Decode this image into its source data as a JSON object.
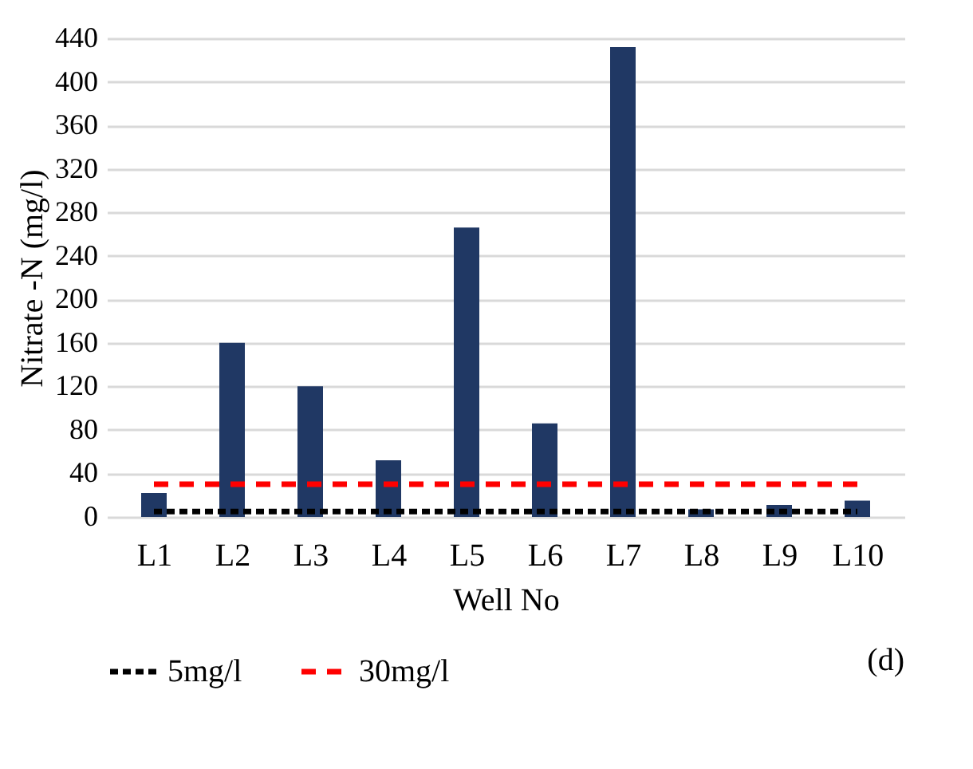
{
  "chart_data": {
    "type": "bar",
    "xlabel": "Well No",
    "ylabel": "Nitrate -N (mg/l)",
    "categories": [
      "L1",
      "L2",
      "L3",
      "L4",
      "L5",
      "L6",
      "L7",
      "L8",
      "L9",
      "L10"
    ],
    "series": [
      {
        "color": "#203864",
        "values": [
          22,
          160,
          120,
          52,
          266,
          86,
          432,
          7,
          11,
          15
        ]
      },
      {
        "type": "line",
        "name": "5mg/l",
        "color": "#000000",
        "line_style": "dotted",
        "values": [
          5,
          5,
          5,
          5,
          5,
          5,
          5,
          5,
          5,
          5
        ]
      },
      {
        "type": "line",
        "name": "30mg/l",
        "color": "#ff0000",
        "line_style": "dashed",
        "values": [
          30,
          30,
          30,
          30,
          30,
          30,
          30,
          30,
          30,
          30
        ]
      }
    ],
    "ylim": [
      0,
      440
    ],
    "yticks": [
      0,
      40,
      80,
      120,
      160,
      200,
      240,
      280,
      320,
      360,
      400,
      440
    ],
    "grid": "y",
    "legend": "bottom",
    "annotations": [
      "(d)"
    ]
  }
}
